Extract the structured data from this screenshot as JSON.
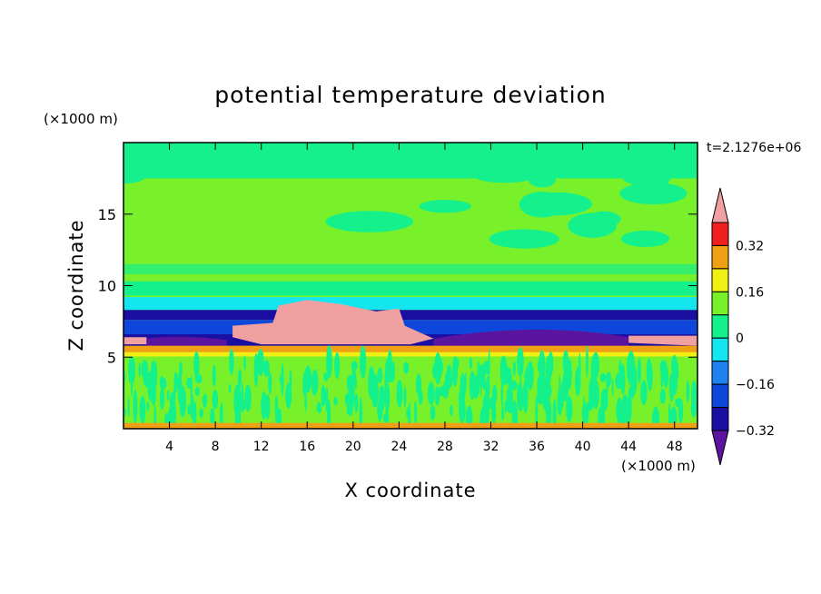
{
  "chart_data": {
    "type": "heatmap",
    "title": "potential temperature deviation",
    "xlabel": "X coordinate",
    "ylabel": "Z coordinate",
    "x_unit_label": "(×1000 m)",
    "y_unit_label": "(×1000 m)",
    "time_label": "t=2.1276e+06",
    "xlim": [
      0,
      50
    ],
    "ylim": [
      0,
      20
    ],
    "x_ticks": [
      4,
      8,
      12,
      16,
      20,
      24,
      28,
      32,
      36,
      40,
      44,
      48
    ],
    "y_ticks": [
      5,
      10,
      15
    ],
    "colorbar": {
      "labels": [
        "0.32",
        "0.16",
        "0",
        "−0.16",
        "−0.32"
      ],
      "label_values": [
        0.32,
        0.16,
        0,
        -0.16,
        -0.32
      ],
      "levels": [
        -0.4,
        -0.32,
        -0.24,
        -0.16,
        -0.08,
        0,
        0.08,
        0.16,
        0.24,
        0.32,
        0.4
      ],
      "colors": [
        "#5a14a0",
        "#1a0fa0",
        "#0f46dc",
        "#1e82f0",
        "#14e6f0",
        "#14f08c",
        "#78f02a",
        "#f0f014",
        "#f0a014",
        "#f01e1e",
        "#f0a0a0"
      ],
      "extend": "both"
    },
    "fields": {
      "background": "#78f02a",
      "top_region": "#14f08c",
      "lower_turbulent_layer": "#14f08c",
      "surface_layer": "#f0a014",
      "inversion_warm_core": "#f0a0a0",
      "inversion_cold_core": "#5a14a0"
    }
  }
}
